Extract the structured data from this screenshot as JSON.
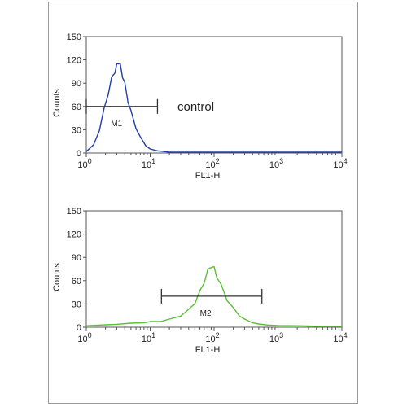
{
  "colors": {
    "control_series": "#1f3ea8",
    "sample_series": "#5cbf34",
    "axis": "#555555",
    "gate": "#333333",
    "frame": "#9a9a9a"
  },
  "chart_data": [
    {
      "type": "line",
      "title": "",
      "xlabel": "FL1-H",
      "ylabel": "Counts",
      "x_scale": "log",
      "xlim": [
        1,
        10000
      ],
      "ylim": [
        0,
        150
      ],
      "grid": false,
      "x_ticks": [
        {
          "value": 1,
          "base": "10",
          "exp": "0"
        },
        {
          "value": 10,
          "base": "10",
          "exp": "1"
        },
        {
          "value": 100,
          "base": "10",
          "exp": "2"
        },
        {
          "value": 1000,
          "base": "10",
          "exp": "3"
        },
        {
          "value": 10000,
          "base": "10",
          "exp": "4"
        }
      ],
      "y_ticks": [
        "0",
        "30",
        "60",
        "90",
        "120",
        "150"
      ],
      "annotation": "control",
      "gate": {
        "label": "M1",
        "x_start": 1,
        "x_end": 13,
        "y": 60
      },
      "series": [
        {
          "color": "#1f3ea8",
          "x": [
            1,
            1.3,
            1.6,
            1.9,
            2.2,
            2.5,
            2.8,
            3.0,
            3.2,
            3.4,
            3.7,
            4.0,
            4.5,
            5.0,
            6.0,
            7.0,
            8.5,
            10,
            13,
            16,
            20,
            30,
            50,
            100,
            300,
            1000,
            10000
          ],
          "y": [
            2,
            10,
            30,
            55,
            78,
            95,
            106,
            112,
            118,
            112,
            100,
            88,
            68,
            52,
            33,
            20,
            10,
            5,
            3,
            2,
            1,
            1,
            1,
            0,
            0,
            0,
            0
          ]
        }
      ]
    },
    {
      "type": "line",
      "title": "",
      "xlabel": "FL1-H",
      "ylabel": "Counts",
      "x_scale": "log",
      "xlim": [
        1,
        10000
      ],
      "ylim": [
        0,
        150
      ],
      "grid": false,
      "x_ticks": [
        {
          "value": 1,
          "base": "10",
          "exp": "0"
        },
        {
          "value": 10,
          "base": "10",
          "exp": "1"
        },
        {
          "value": 100,
          "base": "10",
          "exp": "2"
        },
        {
          "value": 1000,
          "base": "10",
          "exp": "3"
        },
        {
          "value": 10000,
          "base": "10",
          "exp": "4"
        }
      ],
      "y_ticks": [
        "0",
        "30",
        "60",
        "90",
        "120",
        "150"
      ],
      "annotation": "",
      "gate": {
        "label": "M2",
        "x_start": 15,
        "x_end": 560,
        "y": 40
      },
      "series": [
        {
          "color": "#5cbf34",
          "x": [
            1,
            2,
            3,
            5,
            8,
            10,
            15,
            20,
            30,
            40,
            50,
            60,
            70,
            80,
            90,
            100,
            110,
            130,
            160,
            200,
            250,
            300,
            400,
            500,
            700,
            1000,
            2000,
            5000,
            10000
          ],
          "y": [
            2,
            3,
            4,
            5,
            6,
            7,
            8,
            10,
            15,
            22,
            32,
            45,
            60,
            72,
            80,
            75,
            67,
            52,
            36,
            24,
            15,
            10,
            6,
            4,
            3,
            2,
            2,
            1,
            1
          ]
        }
      ]
    }
  ]
}
